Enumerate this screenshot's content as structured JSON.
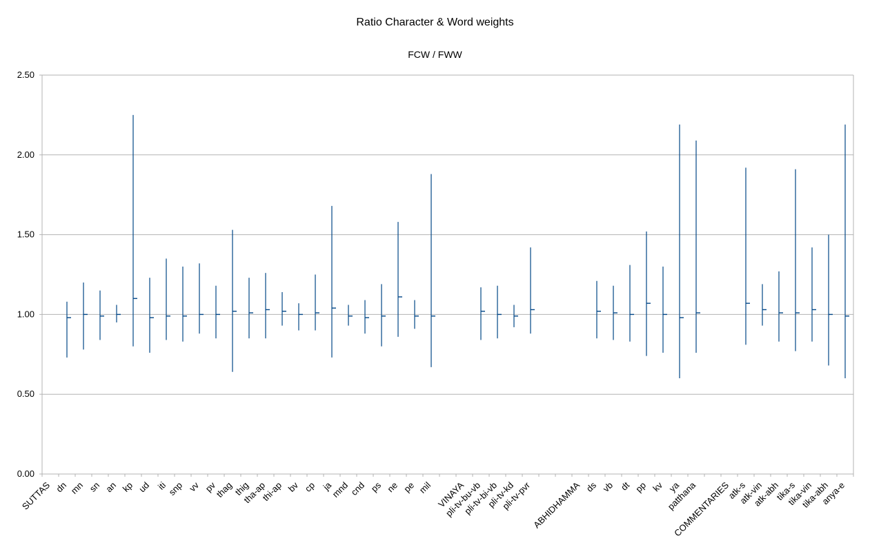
{
  "chart_data": {
    "type": "stock",
    "title": "Ratio Character & Word weights",
    "subtitle": "FCW / FWW",
    "xlabel": "",
    "ylabel": "",
    "ylim": [
      0,
      2.5
    ],
    "yticks": [
      "0.00",
      "0.50",
      "1.00",
      "1.50",
      "2.00",
      "2.50"
    ],
    "grid": true,
    "legend": "none",
    "colors": {
      "series": "#004586",
      "grid": "#b3b3b3",
      "axis": "#b3b3b3"
    },
    "categories": [
      "SUTTAS",
      "dn",
      "mn",
      "sn",
      "an",
      "kp",
      "ud",
      "iti",
      "snp",
      "vv",
      "pv",
      "thag",
      "thig",
      "tha-ap",
      "thi-ap",
      "bv",
      "cp",
      "ja",
      "mnd",
      "cnd",
      "ps",
      "ne",
      "pe",
      "mil",
      "",
      "VINAYA",
      "pli-tv-bu-vb",
      "pli-tv-bi-vb",
      "pli-tv-kd",
      "pli-tv-pvr",
      "",
      "",
      "ABHIDHAMMA",
      "ds",
      "vb",
      "dt",
      "pp",
      "kv",
      "ya",
      "patthana",
      "",
      "COMMENTARIES",
      "atk-s",
      "atk-vin",
      "atk-abh",
      "tika-s",
      "tika-vin",
      "tika-abh",
      "anya-e"
    ],
    "series": [
      {
        "name": "High",
        "values": [
          null,
          1.08,
          1.2,
          1.15,
          1.06,
          2.25,
          1.23,
          1.35,
          1.3,
          1.32,
          1.18,
          1.53,
          1.23,
          1.26,
          1.14,
          1.07,
          1.25,
          1.68,
          1.06,
          1.09,
          1.19,
          1.58,
          1.09,
          1.88,
          null,
          null,
          1.17,
          1.18,
          1.06,
          1.42,
          null,
          null,
          null,
          1.21,
          1.18,
          1.31,
          1.52,
          1.3,
          2.19,
          2.09,
          null,
          null,
          1.92,
          1.19,
          1.27,
          1.91,
          1.42,
          1.5,
          2.19
        ]
      },
      {
        "name": "Low",
        "values": [
          null,
          0.73,
          0.78,
          0.84,
          0.95,
          0.8,
          0.76,
          0.84,
          0.83,
          0.88,
          0.85,
          0.64,
          0.85,
          0.85,
          0.93,
          0.9,
          0.9,
          0.73,
          0.93,
          0.88,
          0.8,
          0.86,
          0.91,
          0.67,
          null,
          null,
          0.84,
          0.85,
          0.92,
          0.88,
          null,
          null,
          null,
          0.85,
          0.84,
          0.83,
          0.74,
          0.76,
          0.6,
          0.76,
          null,
          null,
          0.81,
          0.93,
          0.83,
          0.77,
          0.83,
          0.68,
          0.6
        ]
      },
      {
        "name": "Close",
        "values": [
          null,
          0.98,
          1.0,
          0.99,
          1.0,
          1.1,
          0.98,
          0.99,
          0.99,
          1.0,
          1.0,
          1.02,
          1.01,
          1.03,
          1.02,
          1.0,
          1.01,
          1.04,
          0.99,
          0.98,
          0.99,
          1.11,
          0.99,
          0.99,
          null,
          null,
          1.02,
          1.0,
          0.99,
          1.03,
          null,
          null,
          null,
          1.02,
          1.01,
          1.0,
          1.07,
          1.0,
          0.98,
          1.01,
          null,
          null,
          1.07,
          1.03,
          1.01,
          1.01,
          1.03,
          1.0,
          0.99
        ]
      }
    ]
  }
}
